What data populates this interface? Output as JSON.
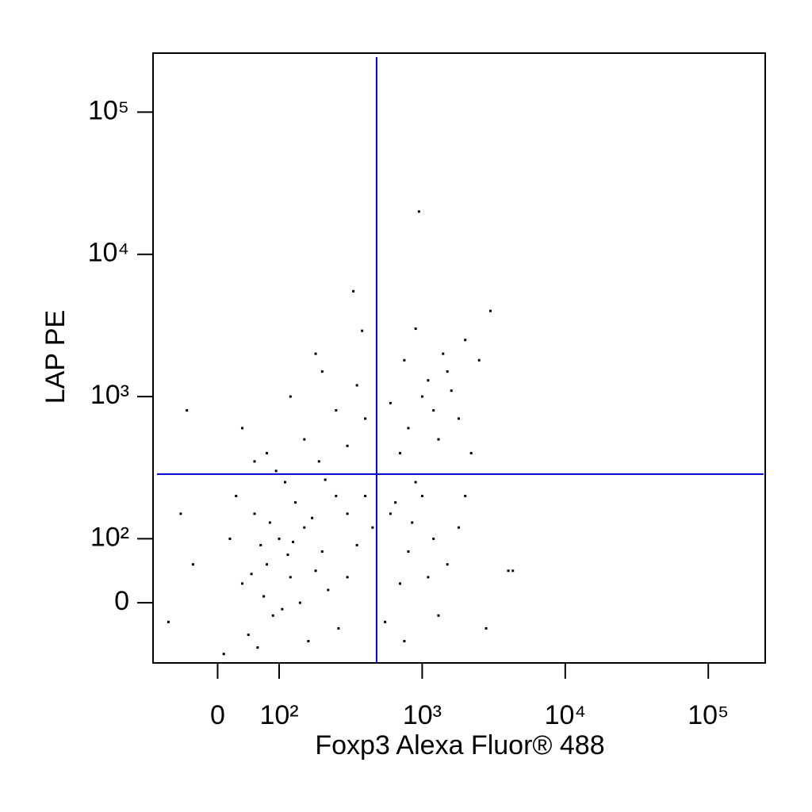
{
  "chart_data": {
    "type": "scatter",
    "x_label": "Foxp3  Alexa Fluor® 488",
    "y_label": "LAP PE",
    "xscale": "biexponential",
    "yscale": "biexponential",
    "xlim": [
      -105,
      250000
    ],
    "ylim": [
      -94,
      260000
    ],
    "xticks": [
      0,
      {
        "value": 100,
        "label": "10²"
      },
      {
        "value": 1000,
        "label": "10³"
      },
      {
        "value": 10000,
        "label": "10⁴"
      },
      {
        "value": 100000,
        "label": "10⁵"
      }
    ],
    "yticks": [
      0,
      {
        "value": 100,
        "label": "10²"
      },
      {
        "value": 1000,
        "label": "10³"
      },
      {
        "value": 10000,
        "label": "10⁴"
      },
      {
        "value": 100000,
        "label": "10⁵"
      }
    ],
    "quadrant_x": 480,
    "quadrant_y": 285,
    "quadrant_color": "#0000cc",
    "series": [
      {
        "color": "#000000",
        "x": [
          100,
          80,
          150,
          120,
          60,
          200,
          250,
          90,
          40,
          130,
          180,
          70,
          110,
          300,
          220,
          50,
          20,
          -40,
          -80,
          10,
          160,
          140,
          95,
          350,
          400,
          260,
          30,
          -60,
          190,
          75,
          85,
          115,
          105,
          170,
          210,
          55,
          65,
          125,
          300,
          450,
          600,
          800,
          1000,
          700,
          1200,
          1500,
          900,
          550,
          1800,
          650,
          750,
          1100,
          2000,
          850,
          1300,
          150,
          250,
          80,
          350,
          200,
          40,
          300,
          120,
          400,
          60,
          -50,
          180,
          380,
          330,
          1000,
          1500,
          800,
          1200,
          2000,
          1400,
          700,
          1800,
          1100,
          600,
          2500,
          900,
          1300,
          1600,
          750,
          2200,
          950,
          3000,
          4000,
          4300,
          2800
        ],
        "values": [
          100,
          60,
          120,
          40,
          150,
          80,
          200,
          -20,
          30,
          180,
          50,
          90,
          250,
          150,
          20,
          -50,
          100,
          60,
          -30,
          -80,
          -60,
          0,
          300,
          90,
          200,
          -40,
          200,
          150,
          350,
          10,
          130,
          75,
          -10,
          140,
          260,
          45,
          -70,
          95,
          40,
          120,
          150,
          80,
          200,
          30,
          100,
          60,
          250,
          -30,
          120,
          180,
          -60,
          40,
          200,
          130,
          -20,
          500,
          800,
          400,
          1200,
          1500,
          600,
          450,
          1000,
          700,
          350,
          800,
          2000,
          2900,
          5500,
          1000,
          1500,
          600,
          800,
          2500,
          2000,
          400,
          700,
          1300,
          900,
          1800,
          3000,
          500,
          1100,
          1800,
          400,
          20000,
          4000,
          50,
          50,
          -40
        ]
      }
    ]
  }
}
